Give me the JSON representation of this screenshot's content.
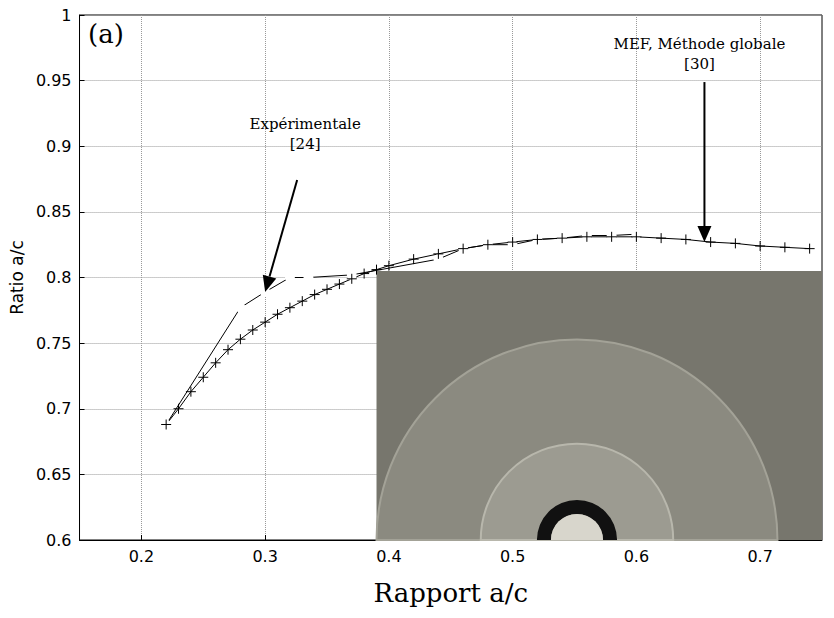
{
  "chart_data": {
    "type": "line",
    "title": "(a)",
    "x_label": "Rapport a/c",
    "y_label": "Ratio a/c",
    "xlim": [
      0.15,
      0.75
    ],
    "xticks": [
      0.2,
      0.3,
      0.4,
      0.5,
      0.6,
      0.7
    ],
    "ylim": [
      0.6,
      1
    ],
    "yticks": [
      0.6,
      0.65,
      0.7,
      0.75,
      0.8,
      0.85,
      0.9,
      0.95,
      1
    ],
    "grid": true,
    "series": [
      {
        "name": "Expérimentale [24]",
        "color": "#000000",
        "marker": "circle",
        "line_style": "solid",
        "x": [
          0.22,
          0.28,
          0.3,
          0.32,
          0.335,
          0.37,
          0.44,
          0.46,
          0.48,
          0.5,
          0.52,
          0.54,
          0.56,
          0.58,
          0.6
        ],
        "values": [
          0.688,
          0.777,
          0.789,
          0.8,
          0.8,
          0.802,
          0.814,
          0.822,
          0.825,
          0.825,
          0.829,
          0.83,
          0.832,
          0.832,
          0.833
        ]
      },
      {
        "name": "MEF, Méthode globale [30]",
        "color": "#000000",
        "marker": "plus",
        "line_style": "solid",
        "x": [
          0.22,
          0.23,
          0.24,
          0.25,
          0.26,
          0.27,
          0.28,
          0.29,
          0.3,
          0.31,
          0.32,
          0.33,
          0.34,
          0.35,
          0.36,
          0.37,
          0.38,
          0.39,
          0.4,
          0.42,
          0.44,
          0.46,
          0.48,
          0.5,
          0.52,
          0.54,
          0.56,
          0.58,
          0.6,
          0.62,
          0.64,
          0.66,
          0.68,
          0.7,
          0.72,
          0.74
        ],
        "values": [
          0.688,
          0.7,
          0.713,
          0.724,
          0.735,
          0.745,
          0.753,
          0.76,
          0.766,
          0.772,
          0.777,
          0.782,
          0.787,
          0.791,
          0.795,
          0.799,
          0.803,
          0.806,
          0.809,
          0.814,
          0.818,
          0.822,
          0.825,
          0.827,
          0.829,
          0.83,
          0.831,
          0.831,
          0.831,
          0.83,
          0.829,
          0.827,
          0.826,
          0.824,
          0.823,
          0.822
        ]
      }
    ],
    "annotations": [
      {
        "text": "Expérimentale [24]",
        "x": 0.3,
        "y": 0.789
      },
      {
        "text": "MEF, Méthode globale [30]",
        "x": 0.655,
        "y": 0.827
      }
    ]
  }
}
